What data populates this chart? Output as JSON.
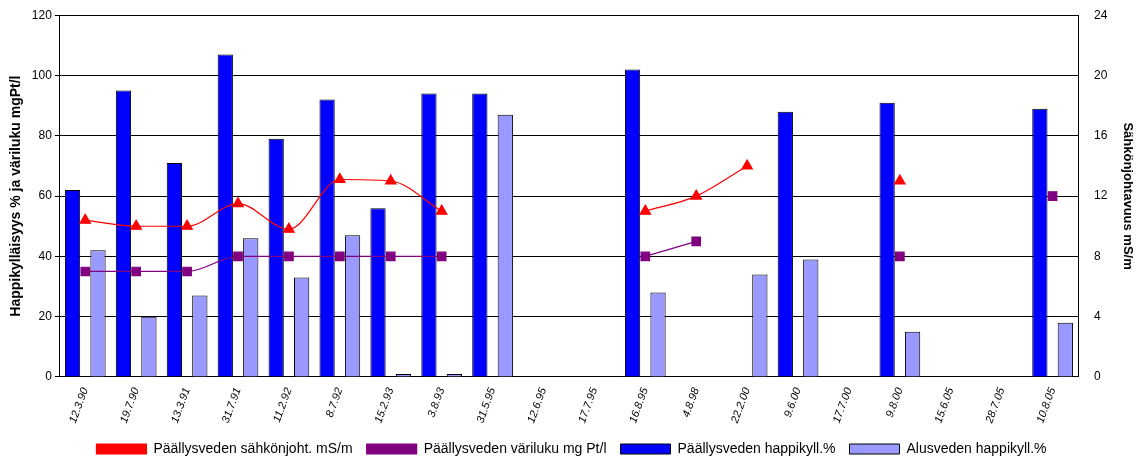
{
  "chart_data": {
    "type": "bar",
    "ylabel": "Happikylläisyys % ja väriluku mgPt/l",
    "y2label": "Sähkönjohtavuus mS/m",
    "categories": [
      "12.3.90",
      "19.7.90",
      "13.3.91",
      "31.7.91",
      "11.2.92",
      "8.7.92",
      "15.2.93",
      "3.8.93",
      "31.5.95",
      "12.6.95",
      "17.7.95",
      "16.8.95",
      "4.8.98",
      "22.2.00",
      "9.6.00",
      "17.7.00",
      "9.8.00",
      "15.6.05",
      "28.7.05",
      "10.8.05"
    ],
    "series": [
      {
        "name": "Päällysveden happikyll.%",
        "color": "#0000ff",
        "values": [
          62,
          95,
          71,
          107,
          79,
          92,
          56,
          94,
          94,
          null,
          null,
          102,
          null,
          null,
          88,
          null,
          91,
          null,
          null,
          89
        ]
      },
      {
        "name": "Alusveden happikyll.%",
        "color": "#9999ff",
        "values": [
          42,
          20,
          27,
          46,
          33,
          47,
          1,
          1,
          87,
          null,
          null,
          28,
          null,
          34,
          39,
          null,
          15,
          null,
          null,
          18
        ]
      },
      {
        "name": "Päällysveden sähkönjoht. mS/m",
        "color": "#ff0000",
        "type": "line",
        "axis": "y2",
        "marker": "triangle",
        "values": [
          10.4,
          10,
          10,
          11.5,
          9.8,
          13.1,
          13,
          11,
          null,
          null,
          null,
          11,
          12,
          14,
          null,
          null,
          13,
          null,
          null,
          null
        ]
      },
      {
        "name": "Päällysveden väriluku mg Pt/l",
        "color": "#800080",
        "type": "line",
        "axis": "y2",
        "marker": "square",
        "values": [
          7,
          7,
          7,
          8,
          8,
          8,
          8,
          8,
          null,
          null,
          null,
          8,
          9,
          null,
          null,
          null,
          8,
          null,
          null,
          12
        ]
      }
    ],
    "ylim": [
      0,
      120
    ],
    "yticks": [
      0,
      20,
      40,
      60,
      80,
      100,
      120
    ],
    "y2lim": [
      0,
      24
    ],
    "y2ticks": [
      0,
      4,
      8,
      12,
      16,
      20,
      24
    ],
    "grid": "y",
    "legend": "bottom",
    "line_style": "solid"
  }
}
